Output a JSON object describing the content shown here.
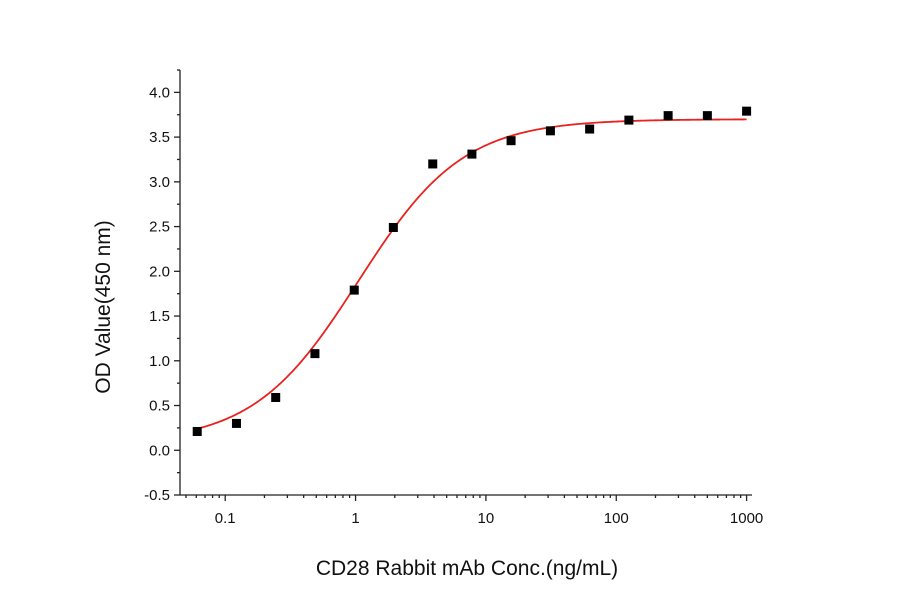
{
  "chart_data": {
    "type": "scatter",
    "title": "",
    "xlabel": "CD28 Rabbit mAb Conc.(ng/mL)",
    "ylabel": "OD Value(450 nm)",
    "xscale": "log",
    "xlim": [
      0.045,
      1100
    ],
    "ylim": [
      -0.5,
      4.25
    ],
    "xticks": [
      0.1,
      1,
      10,
      100,
      1000
    ],
    "xtick_labels": [
      "0.1",
      "1",
      "10",
      "100",
      "1000"
    ],
    "yticks": [
      -0.5,
      0.0,
      0.5,
      1.0,
      1.5,
      2.0,
      2.5,
      3.0,
      3.5,
      4.0
    ],
    "ytick_labels": [
      "-0.5",
      "0.0",
      "0.5",
      "1.0",
      "1.5",
      "2.0",
      "2.5",
      "3.0",
      "3.5",
      "4.0"
    ],
    "grid": false,
    "legend": "none",
    "series": [
      {
        "kind": "points",
        "marker": "square",
        "color": "#000000",
        "x": [
          0.061,
          0.122,
          0.244,
          0.488,
          0.977,
          1.95,
          3.91,
          7.81,
          15.6,
          31.25,
          62.5,
          125,
          250,
          500,
          1000
        ],
        "y": [
          0.21,
          0.3,
          0.59,
          1.08,
          1.79,
          2.49,
          3.2,
          3.31,
          3.46,
          3.57,
          3.59,
          3.69,
          3.74,
          3.74,
          3.79
        ]
      },
      {
        "kind": "fit-curve",
        "color": "#e8231f",
        "model": "4PL",
        "bottom": 0.08,
        "top": 3.7,
        "ec50": 1.05,
        "hill": 1.08,
        "x_range": [
          0.061,
          1000
        ]
      }
    ]
  }
}
